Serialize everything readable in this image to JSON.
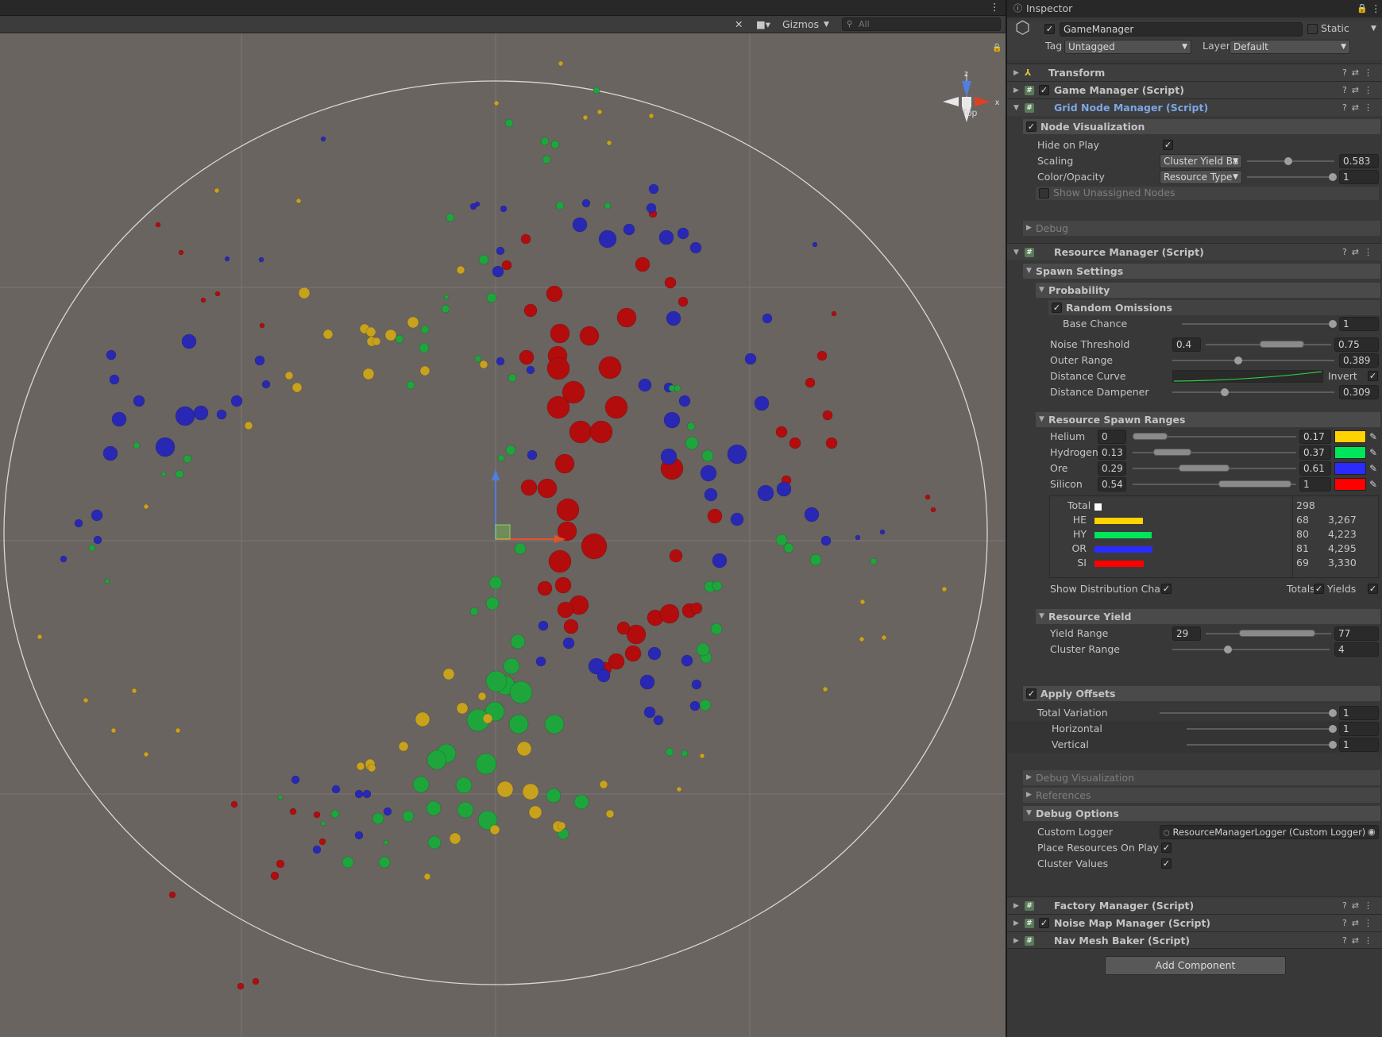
{
  "scene": {
    "toolbar": {
      "gizmos_label": "Gizmos",
      "search_placeholder": "All"
    },
    "orientation": {
      "label": "Top",
      "axis_x": "x",
      "axis_z": "z"
    },
    "colors": {
      "helium": "#c8a21c",
      "hydrogen": "#1ea63c",
      "ore": "#2828b4",
      "silicon": "#b20c0c",
      "background": "#6a6461"
    }
  },
  "inspector": {
    "tab_label": "Inspector",
    "object": {
      "name": "GameManager",
      "static_label": "Static",
      "tag_label": "Tag",
      "tag_value": "Untagged",
      "layer_label": "Layer",
      "layer_value": "Default"
    },
    "components": {
      "transform": "Transform",
      "game_manager": "Game Manager (Script)",
      "grid_node_manager": "Grid Node Manager (Script)",
      "resource_manager": "Resource Manager (Script)",
      "factory_manager": "Factory Manager (Script)",
      "noise_map_manager": "Noise Map Manager (Script)",
      "nav_mesh_baker": "Nav Mesh Baker (Script)"
    },
    "grid": {
      "node_visualization": "Node Visualization",
      "hide_on_play": "Hide on Play",
      "scaling": "Scaling",
      "scaling_mode": "Cluster Yield Ba",
      "scaling_value": "0.583",
      "color_opacity": "Color/Opacity",
      "color_mode": "Resource Type",
      "color_value": "1",
      "show_unassigned": "Show Unassigned Nodes",
      "debug": "Debug"
    },
    "resource": {
      "spawn_settings": "Spawn Settings",
      "probability": "Probability",
      "random_omissions": "Random Omissions",
      "base_chance": "Base Chance",
      "base_chance_value": "1",
      "noise_threshold": "Noise Threshold",
      "noise_min": "0.4",
      "noise_max": "0.75",
      "outer_range": "Outer Range",
      "outer_range_value": "0.389",
      "distance_curve": "Distance Curve",
      "invert": "Invert",
      "distance_dampener": "Distance Dampener",
      "distance_dampener_value": "0.309",
      "spawn_ranges": "Resource Spawn Ranges",
      "ranges": [
        {
          "name": "Helium",
          "min": "0",
          "max": "0.17",
          "color": "#ffd200"
        },
        {
          "name": "Hydrogen",
          "min": "0.13",
          "max": "0.37",
          "color": "#00e65a"
        },
        {
          "name": "Ore",
          "min": "0.29",
          "max": "0.61",
          "color": "#2b2bff"
        },
        {
          "name": "Silicon",
          "min": "0.54",
          "max": "1",
          "color": "#ff0000"
        }
      ],
      "distribution": {
        "total_label": "Total",
        "total_value": "298",
        "rows": [
          {
            "code": "HE",
            "count": "68",
            "yield": "3,267",
            "color": "#ffd200",
            "fraction": 0.68
          },
          {
            "code": "HY",
            "count": "80",
            "yield": "4,223",
            "color": "#00e65a",
            "fraction": 0.8
          },
          {
            "code": "OR",
            "count": "81",
            "yield": "4,295",
            "color": "#2b2bff",
            "fraction": 0.81
          },
          {
            "code": "SI",
            "count": "69",
            "yield": "3,330",
            "color": "#ff0000",
            "fraction": 0.69
          }
        ]
      },
      "show_distribution_chart": "Show Distribution Chart",
      "totals": "Totals",
      "yields": "Yields",
      "resource_yield": "Resource Yield",
      "yield_range": "Yield Range",
      "yield_min": "29",
      "yield_max": "77",
      "cluster_range": "Cluster Range",
      "cluster_value": "4",
      "apply_offsets": "Apply Offsets",
      "total_variation": "Total Variation",
      "total_variation_value": "1",
      "horizontal": "Horizontal",
      "horizontal_value": "1",
      "vertical": "Vertical",
      "vertical_value": "1",
      "debug_visualization": "Debug Visualization",
      "references": "References",
      "debug_options": "Debug Options",
      "custom_logger": "Custom Logger",
      "custom_logger_value": "ResourceManagerLogger (Custom Logger)",
      "place_resources": "Place Resources On Play",
      "cluster_values": "Cluster Values"
    },
    "add_component": "Add Component"
  }
}
